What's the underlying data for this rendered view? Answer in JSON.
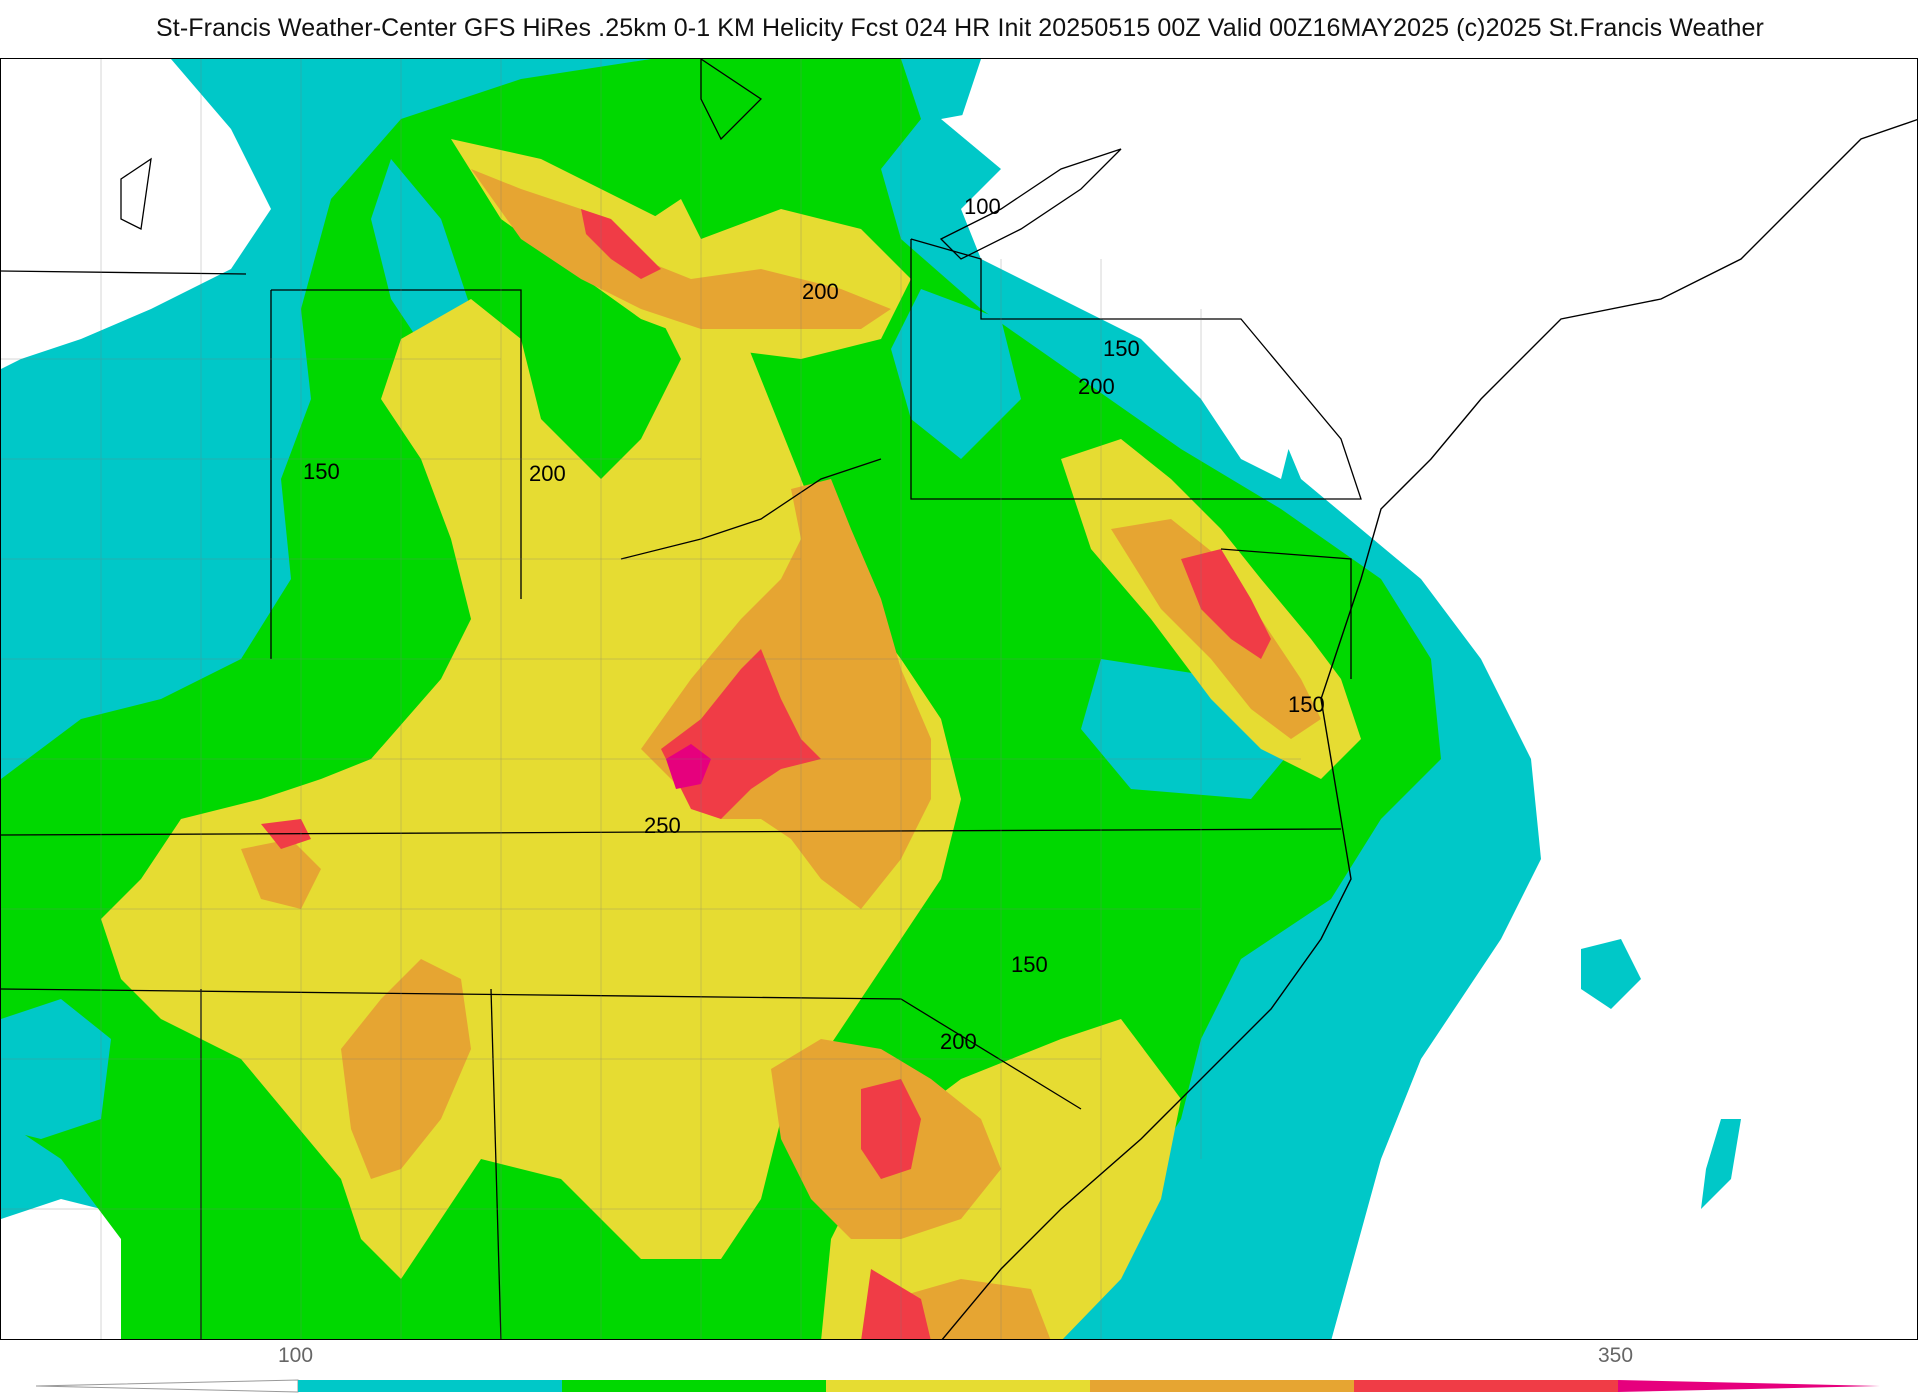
{
  "header": {
    "title": "St-Francis Weather-Center GFS HiRes .25km 0-1 KM Helicity Fcst 024 HR Init 20250515 00Z  Valid 00Z16MAY2025    (c)2025 St.Francis Weather"
  },
  "map": {
    "field": "0-1 KM Helicity",
    "contour_labels": [
      {
        "id": "lbl-100-north",
        "text": "100"
      },
      {
        "id": "lbl-200-great-lakes",
        "text": "200"
      },
      {
        "id": "lbl-150-northeast",
        "text": "150"
      },
      {
        "id": "lbl-200-northeast",
        "text": "200"
      },
      {
        "id": "lbl-150-west",
        "text": "150"
      },
      {
        "id": "lbl-200-central",
        "text": "200"
      },
      {
        "id": "lbl-150-chesapeake",
        "text": "150"
      },
      {
        "id": "lbl-250-ohio-valley",
        "text": "250"
      },
      {
        "id": "lbl-150-carolinas",
        "text": "150"
      },
      {
        "id": "lbl-200-carolinas",
        "text": "200"
      }
    ]
  },
  "colorbar": {
    "ticks": [
      {
        "id": "tick-100",
        "text": "100"
      },
      {
        "id": "tick-350",
        "text": "350"
      }
    ],
    "colors": [
      "#00c8c8",
      "#00d800",
      "#e6dc32",
      "#e6a532",
      "#f03c46",
      "#e6007d"
    ]
  }
}
